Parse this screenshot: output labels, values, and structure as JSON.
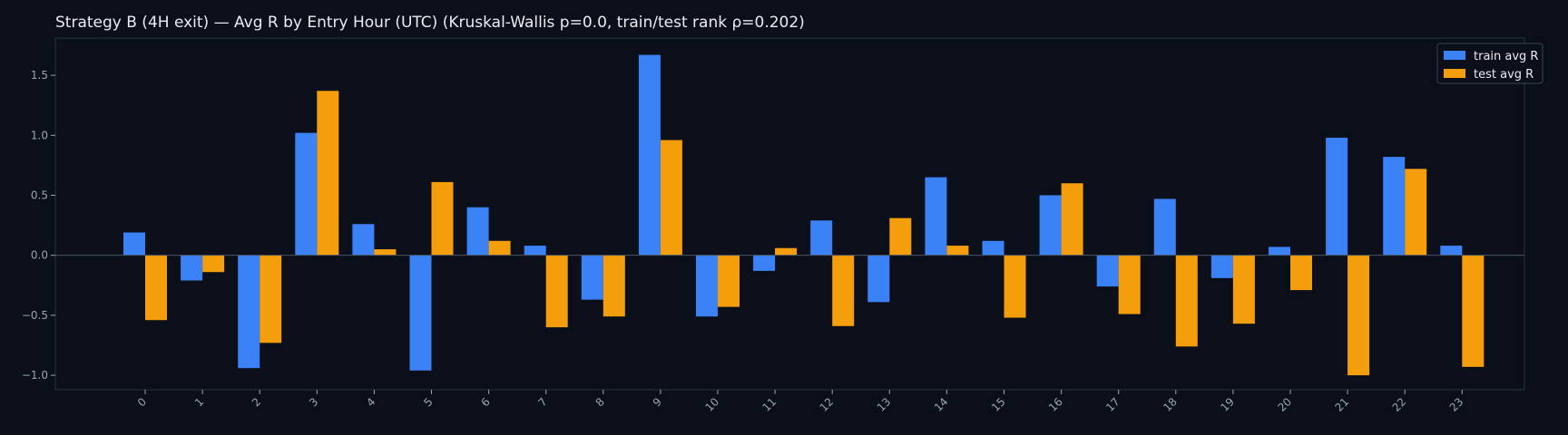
{
  "chart_data": {
    "type": "bar",
    "title": "Strategy B (4H exit) — Avg R by Entry Hour (UTC) (Kruskal-Wallis p=0.0, train/test rank ρ=0.202)",
    "xlabel": "",
    "ylabel": "",
    "categories": [
      "0",
      "1",
      "2",
      "3",
      "4",
      "5",
      "6",
      "7",
      "8",
      "9",
      "10",
      "11",
      "12",
      "13",
      "14",
      "15",
      "16",
      "17",
      "18",
      "19",
      "20",
      "21",
      "22",
      "23"
    ],
    "series": [
      {
        "name": "train avg R",
        "color": "#3b82f6",
        "values": [
          0.19,
          -0.21,
          -0.94,
          1.02,
          0.26,
          -0.96,
          0.4,
          0.08,
          -0.37,
          1.67,
          -0.51,
          -0.13,
          0.29,
          -0.39,
          0.65,
          0.12,
          0.5,
          -0.26,
          0.47,
          -0.19,
          0.07,
          0.98,
          0.82,
          0.08
        ]
      },
      {
        "name": "test avg R",
        "color": "#f59e0b",
        "values": [
          -0.54,
          -0.14,
          -0.73,
          1.37,
          0.05,
          0.61,
          0.12,
          -0.6,
          -0.51,
          0.96,
          -0.43,
          0.06,
          -0.59,
          0.31,
          0.08,
          -0.52,
          0.6,
          -0.49,
          -0.76,
          -0.57,
          -0.29,
          -1.0,
          0.72,
          -0.93
        ]
      }
    ],
    "yticks": [
      "−1.0",
      "−0.5",
      "0.0",
      "0.5",
      "1.0",
      "1.5"
    ],
    "ytick_values": [
      -1.0,
      -0.5,
      0.0,
      0.5,
      1.0,
      1.5
    ],
    "ylim": [
      -1.12,
      1.81
    ],
    "grid": false,
    "legend_position": "top-right"
  },
  "colors": {
    "background": "#0b0f19",
    "axes_frame": "#2a3140",
    "zero_line": "#4b5563",
    "text": "#e8ecf3",
    "tick_text": "#9aa3b2"
  }
}
